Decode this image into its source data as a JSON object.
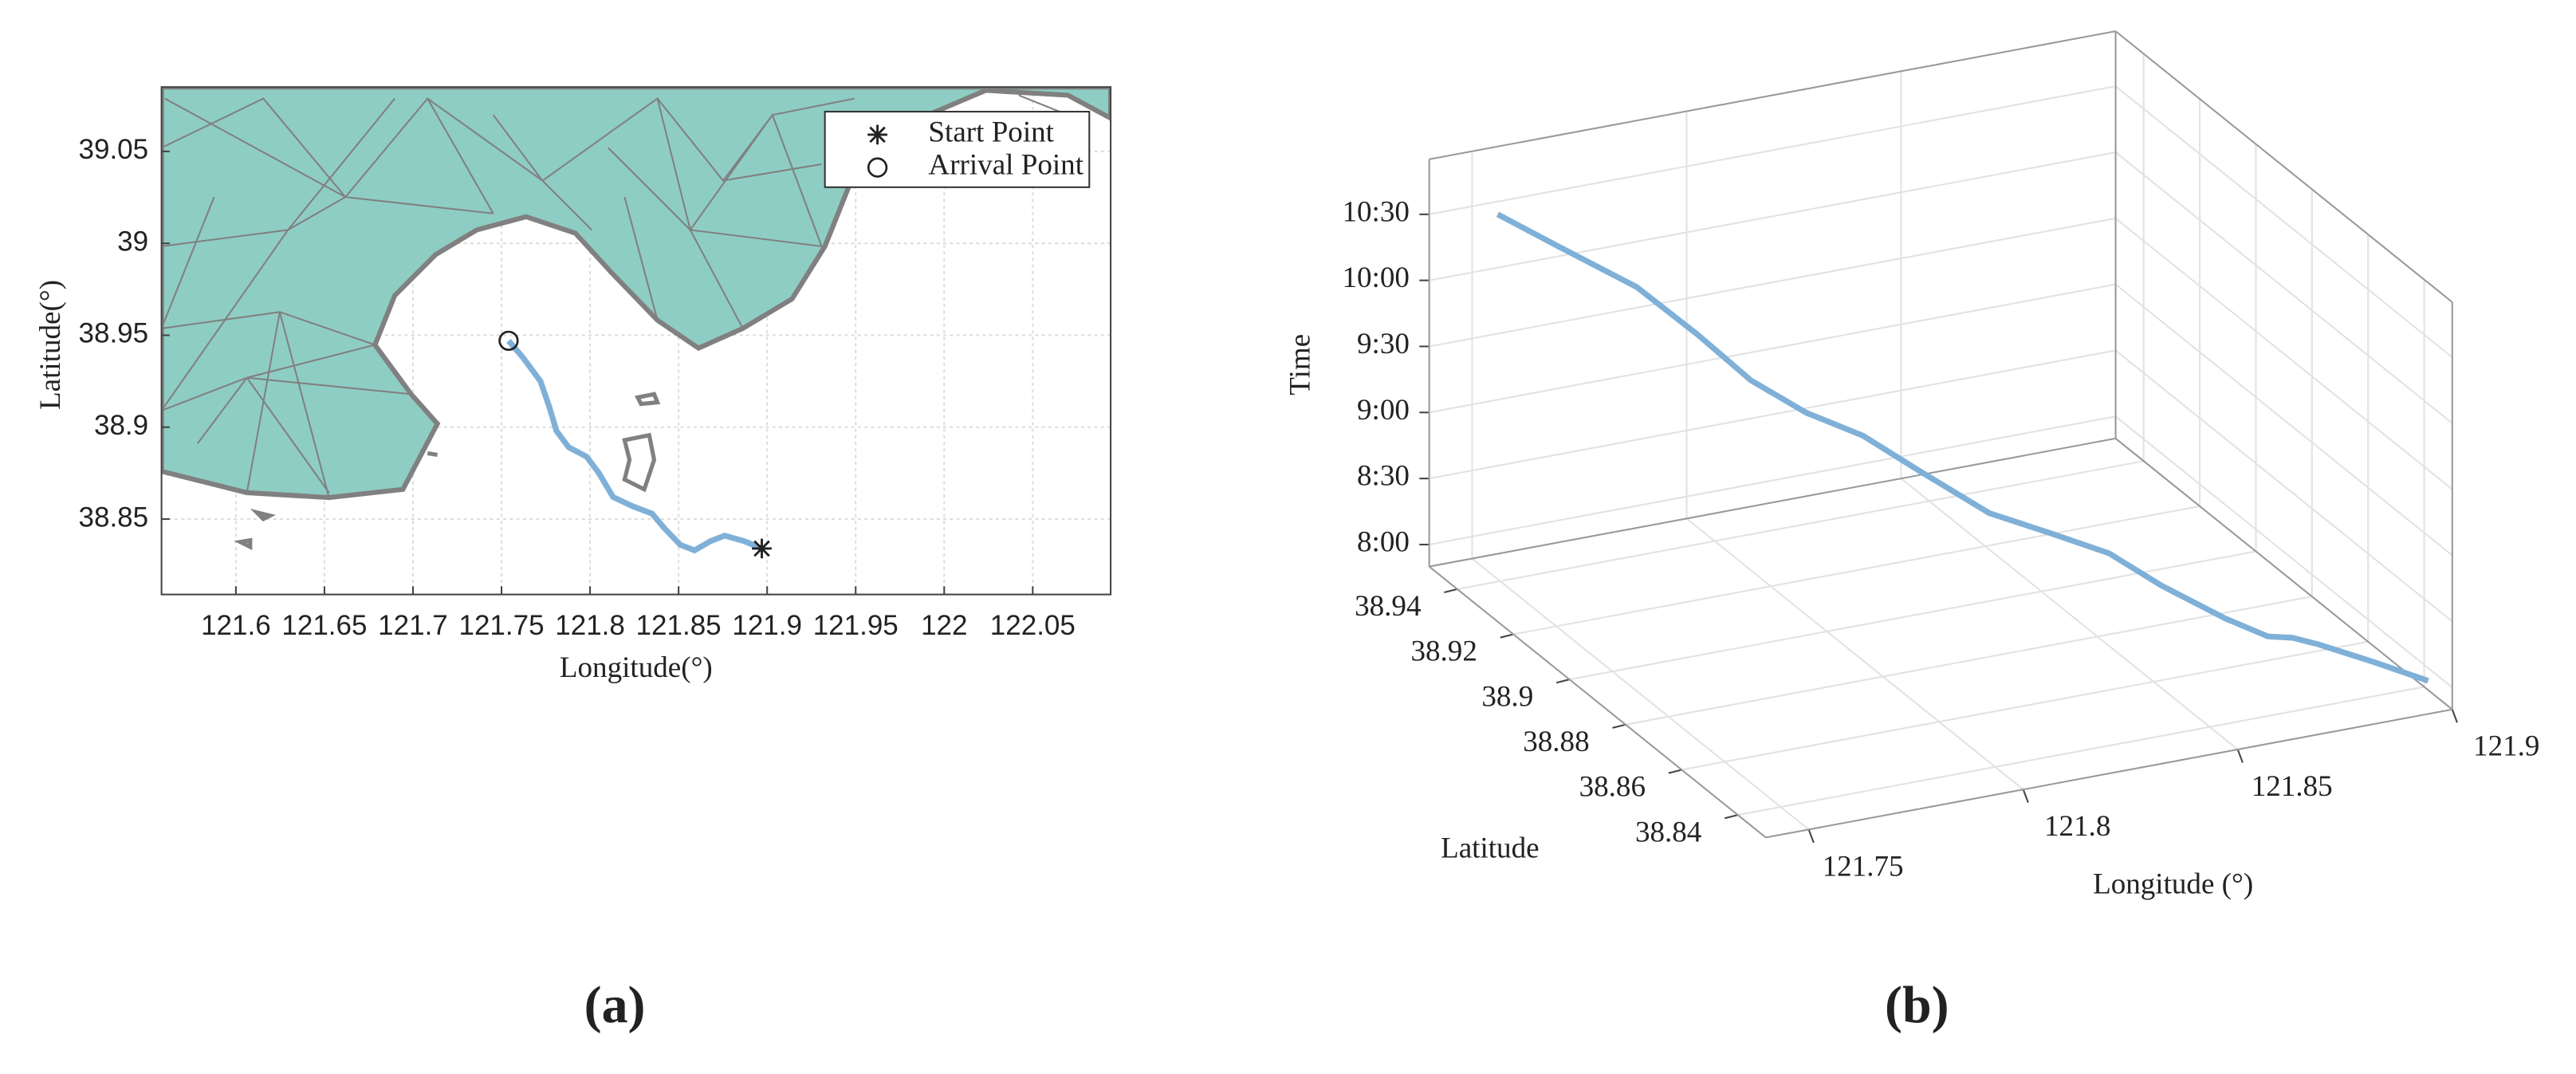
{
  "chart_data": [
    {
      "type": "line",
      "caption": "(a)",
      "x_label": "Longitude(°)",
      "y_label": "Latitude(°)",
      "xlim": [
        121.558,
        122.094
      ],
      "ylim": [
        38.809,
        39.085
      ],
      "xticks": [
        121.6,
        121.65,
        121.7,
        121.75,
        121.8,
        121.85,
        121.9,
        121.95,
        122,
        122.05
      ],
      "yticks": [
        38.85,
        38.9,
        38.95,
        39,
        39.05
      ],
      "grid": true,
      "color": "#7fb0d8",
      "x": [
        121.754,
        121.762,
        121.772,
        121.777,
        121.781,
        121.788,
        121.798,
        121.805,
        121.813,
        121.824,
        121.835,
        121.842,
        121.851,
        121.859,
        121.868,
        121.876,
        121.887,
        121.897
      ],
      "y": [
        38.947,
        38.938,
        38.925,
        38.911,
        38.898,
        38.889,
        38.884,
        38.875,
        38.862,
        38.857,
        38.853,
        38.845,
        38.836,
        38.833,
        38.838,
        38.841,
        38.838,
        38.834
      ],
      "markers": [
        {
          "name": "Start Point",
          "marker": "*",
          "x": 121.897,
          "y": 38.834
        },
        {
          "name": "Arrival Point",
          "marker": "o",
          "x": 121.754,
          "y": 38.947
        }
      ],
      "legend": "upper right"
    },
    {
      "type": "line3d",
      "caption": "(b)",
      "x_label": "Longitude (°)",
      "y_label": "Latitude",
      "z_label": "Time",
      "xlim": [
        121.74,
        121.9
      ],
      "ylim": [
        38.83,
        38.95
      ],
      "zlim": [
        470,
        655
      ],
      "xticks": [
        121.75,
        121.8,
        121.85,
        121.9
      ],
      "yticks": [
        38.84,
        38.86,
        38.88,
        38.9,
        38.92,
        38.94
      ],
      "zticks": [
        {
          "value": 480,
          "label": "8:00"
        },
        {
          "value": 510,
          "label": "8:30"
        },
        {
          "value": 540,
          "label": "9:00"
        },
        {
          "value": 570,
          "label": "9:30"
        },
        {
          "value": 600,
          "label": "10:00"
        },
        {
          "value": 630,
          "label": "10:30"
        }
      ],
      "grid": true,
      "color": "#7fb0d8",
      "x": [
        121.897,
        121.887,
        121.876,
        121.868,
        121.859,
        121.851,
        121.842,
        121.835,
        121.824,
        121.813,
        121.805,
        121.798,
        121.788,
        121.781,
        121.777,
        121.772,
        121.762,
        121.754
      ],
      "y": [
        38.834,
        38.838,
        38.841,
        38.838,
        38.833,
        38.836,
        38.845,
        38.853,
        38.857,
        38.862,
        38.875,
        38.884,
        38.889,
        38.898,
        38.911,
        38.925,
        38.938,
        38.947
      ],
      "z": [
        480,
        488,
        497,
        506,
        515,
        523,
        532,
        541,
        550,
        558,
        567,
        576,
        585,
        593,
        602,
        611,
        620,
        628
      ]
    }
  ]
}
